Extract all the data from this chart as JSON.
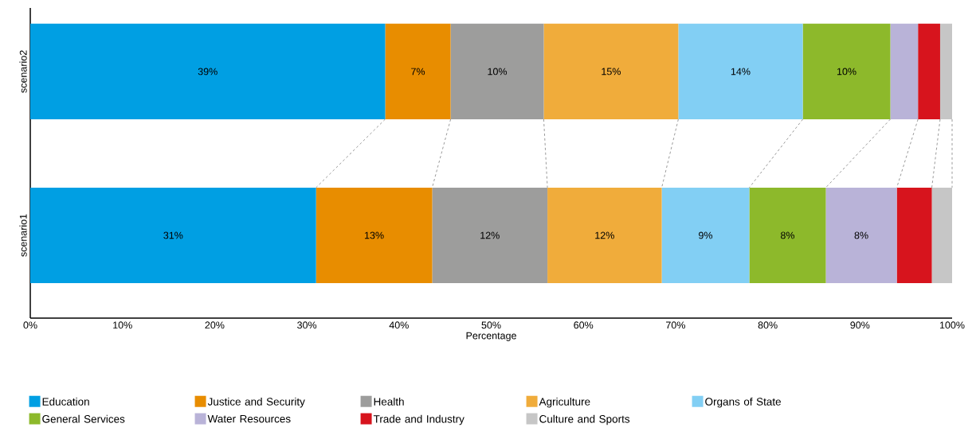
{
  "chart_data": {
    "type": "bar",
    "orientation": "horizontal",
    "stacked": true,
    "xlabel": "Percentage",
    "categories": [
      "scenario2",
      "scenario1"
    ],
    "xlim": [
      0,
      100
    ],
    "xticks": [
      {
        "value": 0,
        "label": "0%"
      },
      {
        "value": 10,
        "label": "10%"
      },
      {
        "value": 20,
        "label": "20%"
      },
      {
        "value": 30,
        "label": "30%"
      },
      {
        "value": 40,
        "label": "40%"
      },
      {
        "value": 50,
        "label": "50%"
      },
      {
        "value": 60,
        "label": "60%"
      },
      {
        "value": 70,
        "label": "70%"
      },
      {
        "value": 80,
        "label": "80%"
      },
      {
        "value": 90,
        "label": "90%"
      },
      {
        "value": 100,
        "label": "100%"
      }
    ],
    "legend": "bottom",
    "grid": false,
    "series": [
      {
        "name": "Education",
        "color": "#009fe3",
        "values": [
          38.5,
          31.0
        ],
        "value_labels": [
          "39%",
          "31%"
        ]
      },
      {
        "name": "Justice and Security",
        "color": "#e88d00",
        "values": [
          7.1,
          12.6
        ],
        "value_labels": [
          "7%",
          "13%"
        ]
      },
      {
        "name": "Health",
        "color": "#9d9d9c",
        "values": [
          10.1,
          12.5
        ],
        "value_labels": [
          "10%",
          "12%"
        ]
      },
      {
        "name": "Agriculture",
        "color": "#f0ac3b",
        "values": [
          14.6,
          12.4
        ],
        "value_labels": [
          "15%",
          "12%"
        ]
      },
      {
        "name": "Organs of State",
        "color": "#82cff4",
        "values": [
          13.5,
          9.5
        ],
        "value_labels": [
          "14%",
          "9%"
        ]
      },
      {
        "name": "General Services",
        "color": "#8db92b",
        "values": [
          9.5,
          8.3
        ],
        "value_labels": [
          "10%",
          "8%"
        ]
      },
      {
        "name": "Water Resources",
        "color": "#b9b3d8",
        "values": [
          3.0,
          7.7
        ],
        "value_labels": [
          null,
          "8%"
        ]
      },
      {
        "name": "Trade and Industry",
        "color": "#d7141d",
        "values": [
          2.4,
          3.8
        ],
        "value_labels": [
          null,
          null
        ]
      },
      {
        "name": "Culture and Sports",
        "color": "#c6c6c6",
        "values": [
          1.3,
          2.2
        ],
        "value_labels": [
          null,
          null
        ]
      }
    ]
  }
}
